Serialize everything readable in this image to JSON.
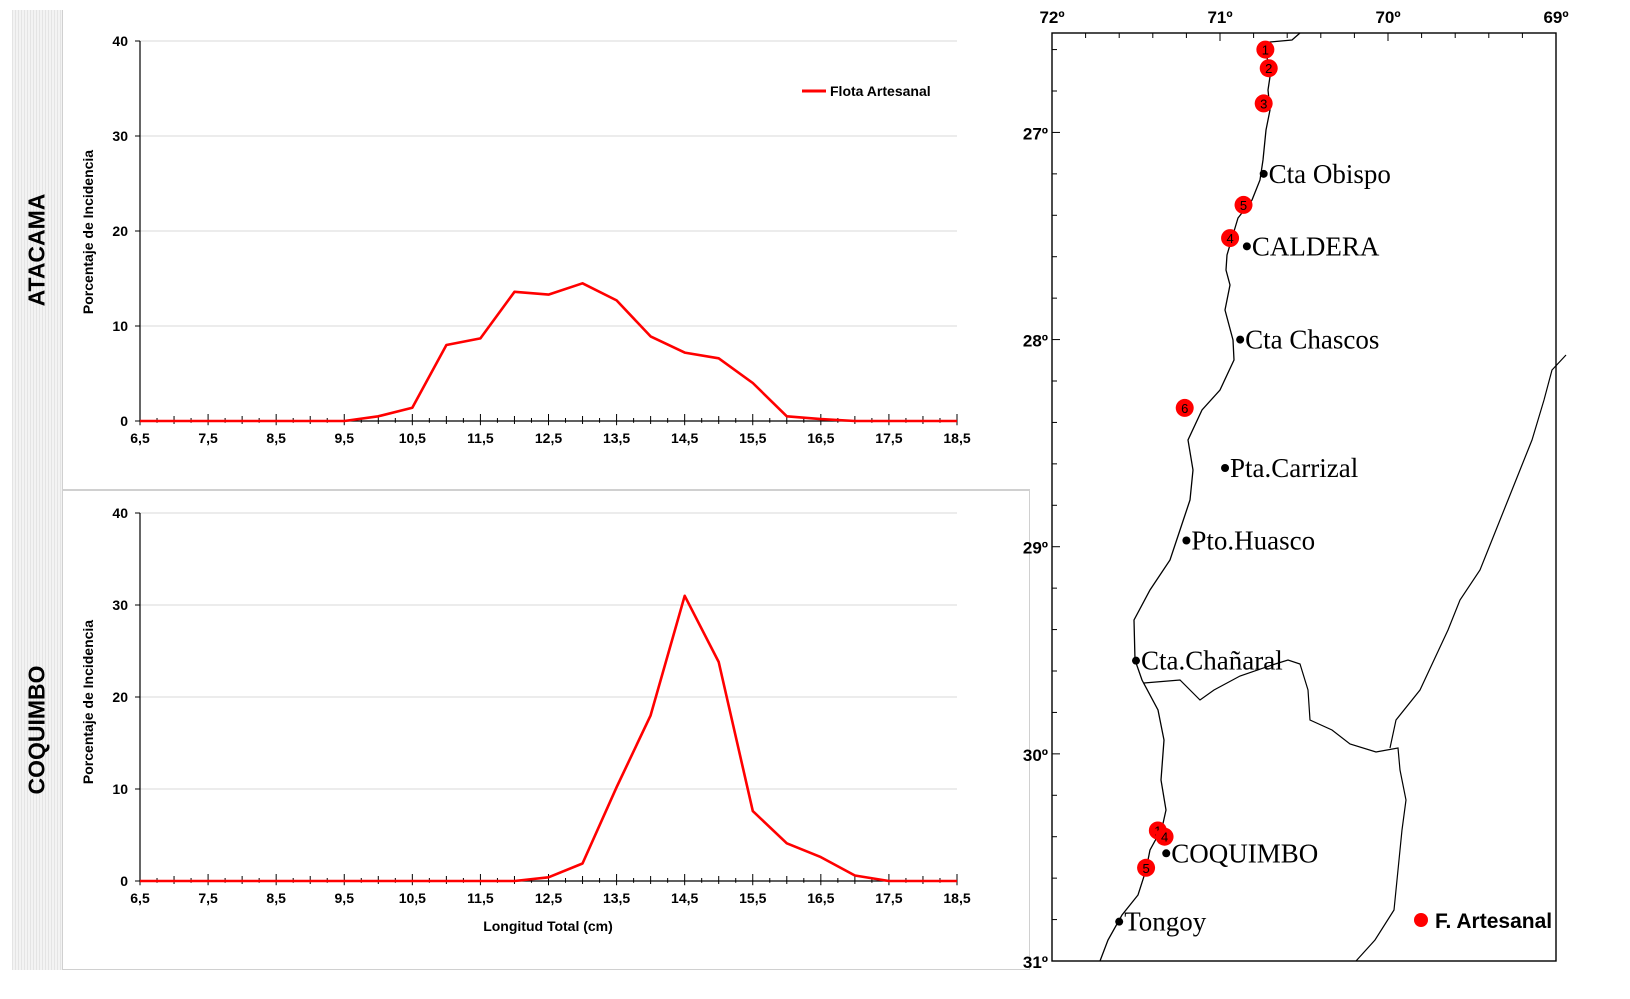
{
  "panels": [
    {
      "region": "ATACAMA",
      "ylabel": "Porcentaje de Incidencia",
      "xlabel": "",
      "legend": "Flota Artesanal"
    },
    {
      "region": "COQUIMBO",
      "ylabel": "Porcentaje de Incidencia",
      "xlabel": "Longitud Total (cm)",
      "legend": ""
    }
  ],
  "chart_data": [
    {
      "type": "line",
      "title": "",
      "region": "ATACAMA",
      "xlabel": "",
      "ylabel": "Porcentaje de Incidencia",
      "xlim": [
        6.5,
        18.5
      ],
      "ylim": [
        0,
        40
      ],
      "yticks": [
        "0",
        "10",
        "20",
        "30",
        "40"
      ],
      "xticks": [
        "6,5",
        "7,5",
        "8,5",
        "9,5",
        "10,5",
        "11,5",
        "12,5",
        "13,5",
        "14,5",
        "15,5",
        "16,5",
        "17,5",
        "18,5"
      ],
      "grid": "horizontal",
      "legend_position": "top-right",
      "series": [
        {
          "name": "Flota Artesanal",
          "color": "#ff0000",
          "x": [
            6.5,
            7.0,
            7.5,
            8.0,
            8.5,
            9.0,
            9.5,
            10.0,
            10.5,
            11.0,
            11.5,
            12.0,
            12.5,
            13.0,
            13.5,
            14.0,
            14.5,
            15.0,
            15.5,
            16.0,
            16.5,
            17.0,
            17.5,
            18.0,
            18.5
          ],
          "y": [
            0,
            0,
            0,
            0,
            0,
            0,
            0,
            0.5,
            1.4,
            8.0,
            8.7,
            13.6,
            13.3,
            14.5,
            12.7,
            8.9,
            7.2,
            6.6,
            4.0,
            0.5,
            0.2,
            0,
            0,
            0,
            0
          ]
        }
      ]
    },
    {
      "type": "line",
      "title": "",
      "region": "COQUIMBO",
      "xlabel": "Longitud Total (cm)",
      "ylabel": "Porcentaje de Incidencia",
      "xlim": [
        6.5,
        18.5
      ],
      "ylim": [
        0,
        40
      ],
      "yticks": [
        "0",
        "10",
        "20",
        "30",
        "40"
      ],
      "xticks": [
        "6,5",
        "7,5",
        "8,5",
        "9,5",
        "10,5",
        "11,5",
        "12,5",
        "13,5",
        "14,5",
        "15,5",
        "16,5",
        "17,5",
        "18,5"
      ],
      "grid": "horizontal",
      "series": [
        {
          "name": "Flota Artesanal",
          "color": "#ff0000",
          "x": [
            6.5,
            7.0,
            7.5,
            8.0,
            8.5,
            9.0,
            9.5,
            10.0,
            10.5,
            11.0,
            11.5,
            12.0,
            12.5,
            13.0,
            13.5,
            14.0,
            14.5,
            15.0,
            15.5,
            16.0,
            16.5,
            17.0,
            17.5,
            18.0,
            18.5
          ],
          "y": [
            0,
            0,
            0,
            0,
            0,
            0,
            0,
            0,
            0,
            0,
            0,
            0,
            0.4,
            1.9,
            10.2,
            18.0,
            31.0,
            23.8,
            7.6,
            4.1,
            2.6,
            0.6,
            0,
            0,
            0
          ]
        }
      ]
    }
  ],
  "map": {
    "lon_labels": [
      "72º",
      "71º",
      "70º",
      "69º"
    ],
    "lat_labels": [
      "27º",
      "28º",
      "29º",
      "30º",
      "31º"
    ],
    "places": [
      {
        "label": "Cta Obispo",
        "lon": 70.74,
        "lat": 27.2
      },
      {
        "label": "CALDERA",
        "lon": 70.84,
        "lat": 27.55
      },
      {
        "label": "Cta Chascos",
        "lon": 70.88,
        "lat": 28.0
      },
      {
        "label": "Pta.Carrizal",
        "lon": 70.97,
        "lat": 28.62
      },
      {
        "label": "Pto.Huasco",
        "lon": 71.2,
        "lat": 28.97
      },
      {
        "label": "Cta.Chañaral",
        "lon": 71.5,
        "lat": 29.55
      },
      {
        "label": "COQUIMBO",
        "lon": 71.32,
        "lat": 30.48
      },
      {
        "label": "Tongoy",
        "lon": 71.6,
        "lat": 30.81
      }
    ],
    "markers": [
      {
        "label": "1",
        "lon": 70.73,
        "lat": 26.6
      },
      {
        "label": "2",
        "lon": 70.71,
        "lat": 26.69
      },
      {
        "label": "3",
        "lon": 70.74,
        "lat": 26.86
      },
      {
        "label": "5",
        "lon": 70.86,
        "lat": 27.35
      },
      {
        "label": "4",
        "lon": 70.94,
        "lat": 27.51
      },
      {
        "label": "6",
        "lon": 71.21,
        "lat": 28.33
      },
      {
        "label": "1",
        "lon": 71.37,
        "lat": 30.37
      },
      {
        "label": "4",
        "lon": 71.33,
        "lat": 30.4
      },
      {
        "label": "5",
        "lon": 71.44,
        "lat": 30.55
      }
    ],
    "legend_label": "F. Artesanal",
    "marker_color": "#ff0000"
  }
}
